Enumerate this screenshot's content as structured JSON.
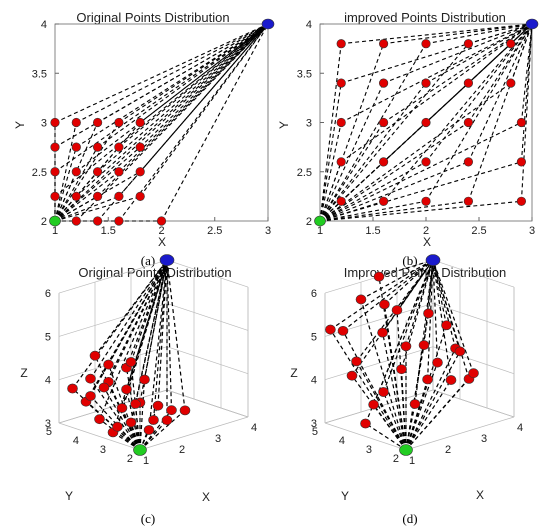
{
  "chart_data": [
    {
      "id": "a",
      "type": "scatter",
      "title": "Original Points Distribution",
      "xlabel": "X",
      "ylabel": "Y",
      "xlim": [
        1,
        3
      ],
      "ylim": [
        2,
        4
      ],
      "xticks": [
        "1",
        "1.5",
        "2",
        "2.5",
        "3"
      ],
      "yticks": [
        "2",
        "2.5",
        "3",
        "3.5",
        "4"
      ],
      "grid": false,
      "start": {
        "x": 1,
        "y": 2,
        "color": "#22cc22"
      },
      "goal": {
        "x": 3,
        "y": 4,
        "color": "#1a1acc"
      },
      "points": [
        [
          1,
          2.0
        ],
        [
          1.2,
          2.0
        ],
        [
          1.4,
          2.0
        ],
        [
          1.6,
          2.0
        ],
        [
          2.0,
          2.0
        ],
        [
          1,
          2.25
        ],
        [
          1.2,
          2.25
        ],
        [
          1.4,
          2.25
        ],
        [
          1.6,
          2.25
        ],
        [
          1.8,
          2.25
        ],
        [
          1,
          2.5
        ],
        [
          1.2,
          2.5
        ],
        [
          1.4,
          2.5
        ],
        [
          1.6,
          2.5
        ],
        [
          1.8,
          2.5
        ],
        [
          1,
          2.75
        ],
        [
          1.2,
          2.75
        ],
        [
          1.4,
          2.75
        ],
        [
          1.6,
          2.75
        ],
        [
          1.8,
          2.75
        ],
        [
          1,
          3.0
        ],
        [
          1.2,
          3.0
        ],
        [
          1.4,
          3.0
        ],
        [
          1.6,
          3.0
        ],
        [
          1.8,
          3.0
        ]
      ],
      "point_color": "#e00000",
      "panel_label": "(a)"
    },
    {
      "id": "b",
      "type": "scatter",
      "title": "improved Points Distribution",
      "xlabel": "X",
      "ylabel": "Y",
      "xlim": [
        1,
        3
      ],
      "ylim": [
        2,
        4
      ],
      "xticks": [
        "1",
        "1.5",
        "2",
        "2.5",
        "3"
      ],
      "yticks": [
        "2",
        "2.5",
        "3",
        "3.5",
        "4"
      ],
      "grid": false,
      "start": {
        "x": 1,
        "y": 2,
        "color": "#22cc22"
      },
      "goal": {
        "x": 3,
        "y": 4,
        "color": "#1a1acc"
      },
      "points": [
        [
          1.2,
          3.8
        ],
        [
          1.6,
          3.8
        ],
        [
          2.0,
          3.8
        ],
        [
          2.4,
          3.8
        ],
        [
          2.8,
          3.8
        ],
        [
          1.2,
          3.4
        ],
        [
          1.6,
          3.4
        ],
        [
          2.0,
          3.4
        ],
        [
          2.4,
          3.4
        ],
        [
          2.8,
          3.4
        ],
        [
          1.2,
          3.0
        ],
        [
          1.6,
          3.0
        ],
        [
          2.0,
          3.0
        ],
        [
          2.4,
          3.0
        ],
        [
          2.9,
          3.0
        ],
        [
          1.2,
          2.6
        ],
        [
          1.6,
          2.6
        ],
        [
          2.0,
          2.6
        ],
        [
          2.4,
          2.6
        ],
        [
          2.9,
          2.6
        ],
        [
          1.2,
          2.2
        ],
        [
          1.6,
          2.2
        ],
        [
          2.0,
          2.2
        ],
        [
          2.4,
          2.2
        ],
        [
          2.9,
          2.2
        ]
      ],
      "point_color": "#e00000",
      "panel_label": "(b)"
    },
    {
      "id": "c",
      "type": "scatter",
      "title": "Original Points Distribution",
      "xlabel": "X",
      "ylabel": "Y",
      "zlabel": "Z",
      "xticks": [
        "1",
        "2",
        "3",
        "4"
      ],
      "yticks": [
        "2",
        "3",
        "4",
        "5"
      ],
      "zticks": [
        "3",
        "4",
        "5",
        "6"
      ],
      "xlim": [
        1,
        4
      ],
      "ylim": [
        2,
        5
      ],
      "zlim": [
        3,
        6
      ],
      "start": {
        "x": 1,
        "y": 2,
        "z": 3,
        "color": "#22cc22"
      },
      "goal": {
        "x": 4,
        "y": 5,
        "z": 6,
        "color": "#1a1acc"
      },
      "points": [
        [
          1.0,
          4.0,
          3.7
        ],
        [
          1.0,
          3.5,
          3.4
        ],
        [
          1.0,
          3.0,
          3.2
        ],
        [
          1.5,
          4.5,
          3.6
        ],
        [
          1.5,
          3.5,
          3.1
        ],
        [
          2.0,
          4.5,
          3.8
        ],
        [
          2.0,
          4.0,
          3.3
        ],
        [
          2.0,
          3.0,
          3.0
        ],
        [
          1.5,
          3.0,
          3.3
        ],
        [
          2.5,
          4.5,
          3.5
        ],
        [
          2.5,
          4.0,
          3.3
        ],
        [
          2.5,
          3.5,
          3.0
        ],
        [
          3.0,
          4.5,
          3.6
        ],
        [
          3.0,
          4.0,
          3.1
        ],
        [
          3.0,
          3.5,
          3.1
        ],
        [
          2.0,
          4.5,
          4.2
        ],
        [
          2.5,
          4.5,
          4.0
        ],
        [
          1.5,
          4.0,
          3.9
        ],
        [
          3.0,
          5.0,
          3.9
        ],
        [
          1.0,
          4.5,
          3.9
        ],
        [
          2.0,
          3.5,
          3.5
        ],
        [
          2.5,
          3.0,
          3.1
        ],
        [
          3.0,
          3.0,
          3.2
        ],
        [
          1.5,
          4.5,
          4.0
        ],
        [
          2.0,
          5.0,
          4.3
        ]
      ],
      "point_color": "#e00000",
      "panel_label": "(c)"
    },
    {
      "id": "d",
      "type": "scatter",
      "title": "Improved Points Distribution",
      "xlabel": "X",
      "ylabel": "Y",
      "zlabel": "Z",
      "xticks": [
        "1",
        "2",
        "3",
        "4"
      ],
      "yticks": [
        "2",
        "3",
        "4",
        "5"
      ],
      "zticks": [
        "3",
        "4",
        "5",
        "6"
      ],
      "xlim": [
        1,
        4
      ],
      "ylim": [
        2,
        5
      ],
      "zlim": [
        3,
        6
      ],
      "start": {
        "x": 1,
        "y": 2,
        "z": 3,
        "color": "#22cc22"
      },
      "goal": {
        "x": 4,
        "y": 5,
        "z": 6,
        "color": "#1a1acc"
      },
      "points": [
        [
          1.0,
          4.8,
          5.2
        ],
        [
          1.0,
          4.0,
          4.3
        ],
        [
          1.0,
          3.2,
          3.8
        ],
        [
          1.5,
          4.5,
          4.4
        ],
        [
          1.5,
          3.5,
          3.9
        ],
        [
          2.0,
          5.0,
          5.6
        ],
        [
          2.0,
          4.2,
          5.0
        ],
        [
          2.0,
          3.5,
          4.3
        ],
        [
          2.5,
          4.8,
          5.4
        ],
        [
          2.5,
          4.0,
          4.6
        ],
        [
          2.5,
          3.2,
          4.0
        ],
        [
          3.0,
          5.0,
          5.1
        ],
        [
          3.0,
          4.0,
          4.5
        ],
        [
          3.0,
          3.0,
          3.9
        ],
        [
          3.5,
          4.5,
          5.0
        ],
        [
          3.5,
          3.5,
          4.4
        ],
        [
          3.5,
          3.0,
          3.8
        ],
        [
          4.0,
          4.5,
          4.6
        ],
        [
          4.0,
          4.0,
          4.1
        ],
        [
          4.0,
          3.5,
          3.7
        ],
        [
          1.5,
          5.0,
          5.0
        ],
        [
          2.0,
          3.0,
          3.6
        ],
        [
          2.5,
          5.0,
          6.0
        ],
        [
          3.0,
          3.5,
          4.2
        ],
        [
          1.0,
          3.5,
          3.3
        ]
      ],
      "point_color": "#e00000",
      "panel_label": "(d)"
    }
  ]
}
